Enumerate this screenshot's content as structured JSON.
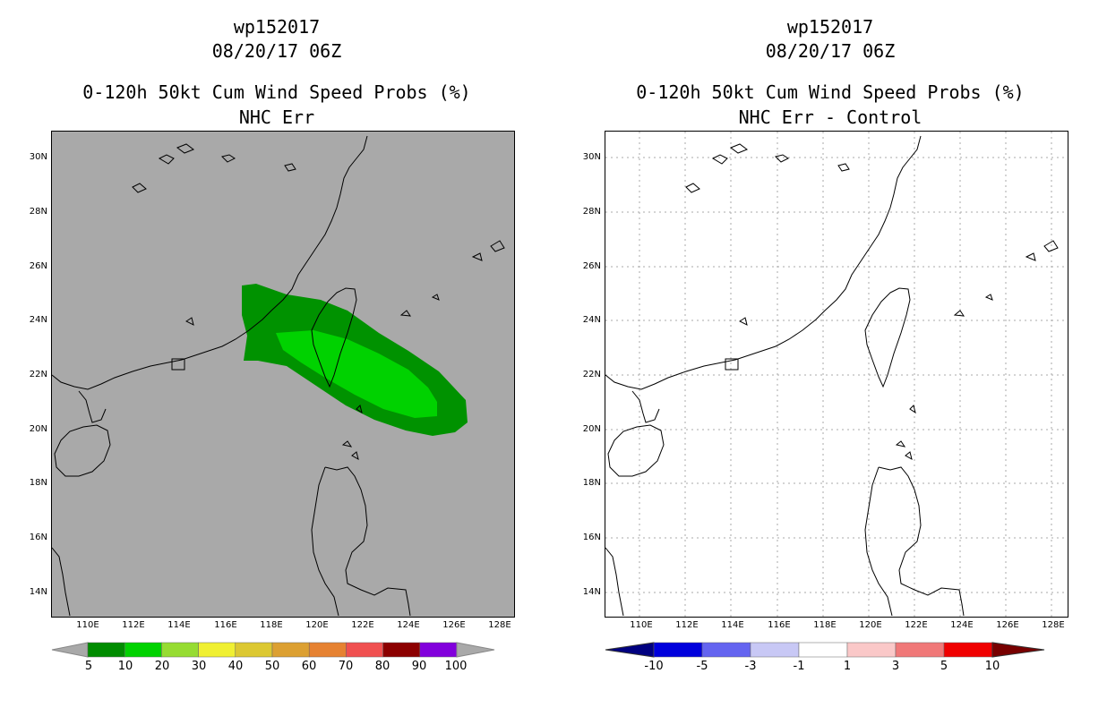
{
  "left_panel": {
    "title_line1": "wp152017",
    "title_line2": "08/20/17 06Z",
    "title_line3": "0-120h 50kt Cum Wind Speed Probs (%)",
    "title_line4": "NHC Err",
    "background_color": "#a9a9a9",
    "colorbar": {
      "labels": [
        "5",
        "10",
        "20",
        "30",
        "40",
        "50",
        "60",
        "70",
        "80",
        "90",
        "100"
      ],
      "colors": [
        "#008c00",
        "#00d200",
        "#96dc32",
        "#f0f032",
        "#dcc832",
        "#dca032",
        "#e68232",
        "#f05050",
        "#8c0000",
        "#8200dc"
      ],
      "end_color": "#a9a9a9"
    },
    "contours": [
      {
        "level": "5-10%",
        "color": "#009200"
      },
      {
        "level": "10-20%",
        "color": "#00d200"
      }
    ]
  },
  "right_panel": {
    "title_line1": "wp152017",
    "title_line2": "08/20/17 06Z",
    "title_line3": "0-120h 50kt Cum Wind Speed Probs (%)",
    "title_line4": "NHC Err - Control",
    "background_color": "#ffffff",
    "colorbar": {
      "labels": [
        "-10",
        "-5",
        "-3",
        "-1",
        "1",
        "3",
        "5",
        "10"
      ],
      "colors": [
        "#0000dc",
        "#6464f0",
        "#c8c8f5",
        "#ffffff",
        "#fac8c8",
        "#f07878",
        "#f00000"
      ],
      "low_end_color": "#000080",
      "high_end_color": "#780000"
    }
  },
  "axes": {
    "lat_labels": [
      "30N",
      "28N",
      "26N",
      "24N",
      "22N",
      "20N",
      "18N",
      "16N",
      "14N"
    ],
    "lon_labels": [
      "110E",
      "112E",
      "114E",
      "116E",
      "118E",
      "120E",
      "122E",
      "124E",
      "126E",
      "128E"
    ]
  }
}
